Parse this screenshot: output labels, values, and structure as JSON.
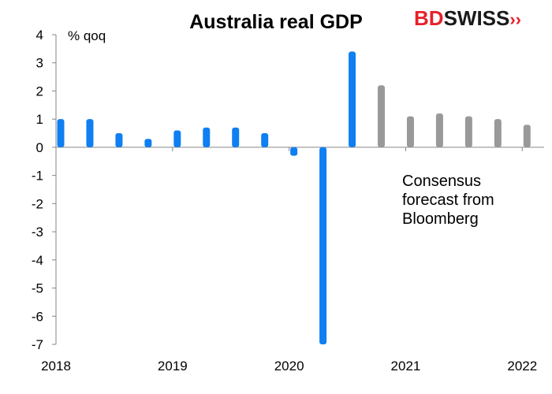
{
  "brand": {
    "part1": "BD",
    "part2": "SWISS",
    "mark": "››",
    "color": "#e8202a"
  },
  "note": {
    "lines": [
      "Consensus",
      "forecast from",
      "Bloomberg"
    ]
  },
  "chart_data": {
    "type": "bar",
    "title": "Australia real GDP",
    "ylabel": "% qoq",
    "xlabel": "",
    "ylim": [
      -7,
      4
    ],
    "yticks": [
      4,
      3,
      2,
      1,
      0,
      -1,
      -2,
      -3,
      -4,
      -5,
      -6,
      -7
    ],
    "x_tick_labels": [
      "2018",
      "2019",
      "2020",
      "2021",
      "2022"
    ],
    "grid": false,
    "legend": "none",
    "colors": {
      "actual": "#0f7ff2",
      "forecast": "#999999"
    },
    "categories": [
      "2018 Q1",
      "2018 Q2",
      "2018 Q3",
      "2018 Q4",
      "2019 Q1",
      "2019 Q2",
      "2019 Q3",
      "2019 Q4",
      "2020 Q1",
      "2020 Q2",
      "2020 Q3",
      "2020 Q4",
      "2021 Q1",
      "2021 Q2",
      "2021 Q3",
      "2021 Q4",
      "2022 Q1"
    ],
    "values": [
      1.0,
      1.0,
      0.5,
      0.3,
      0.6,
      0.7,
      0.7,
      0.5,
      -0.3,
      -7.0,
      3.4,
      2.2,
      1.1,
      1.2,
      1.1,
      1.0,
      0.8
    ],
    "is_forecast": [
      false,
      false,
      false,
      false,
      false,
      false,
      false,
      false,
      false,
      false,
      false,
      true,
      true,
      true,
      true,
      true,
      true
    ]
  }
}
